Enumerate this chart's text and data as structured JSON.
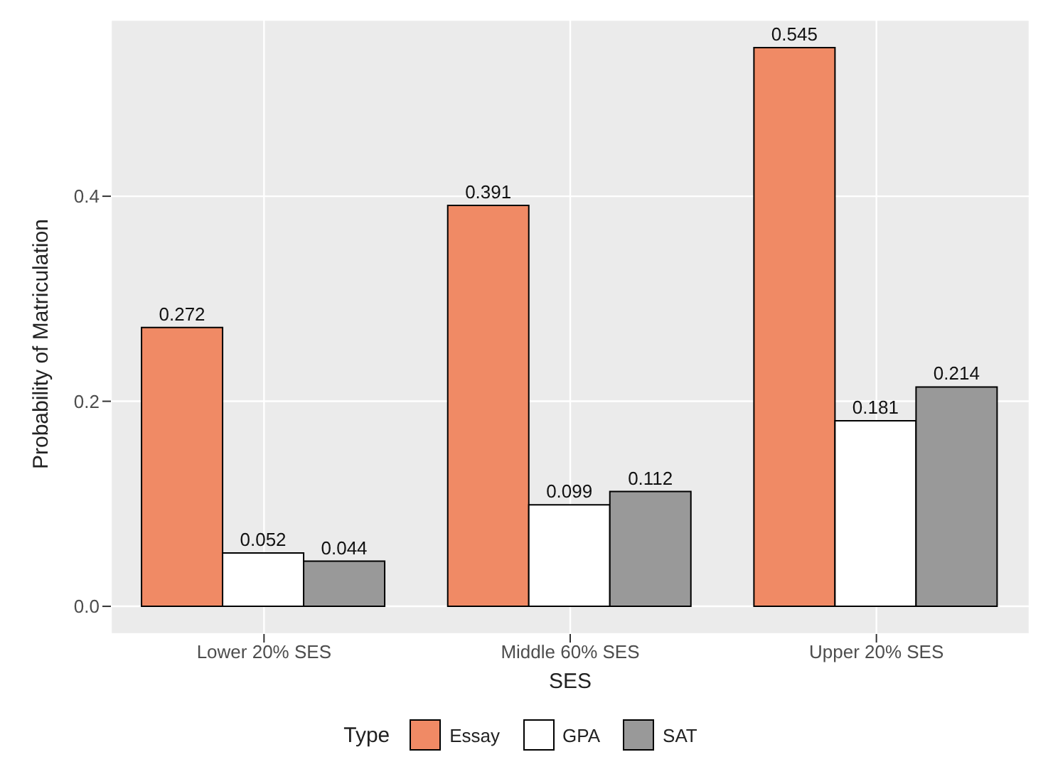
{
  "chart_data": {
    "type": "bar",
    "xlabel": "SES",
    "ylabel": "Probability of Matriculation",
    "legend_title": "Type",
    "categories": [
      "Lower 20% SES",
      "Middle 60% SES",
      "Upper 20% SES"
    ],
    "series": [
      {
        "name": "Essay",
        "color": "#f08a65",
        "values": [
          0.272,
          0.391,
          0.545
        ]
      },
      {
        "name": "GPA",
        "color": "#ffffff",
        "values": [
          0.052,
          0.099,
          0.181
        ]
      },
      {
        "name": "SAT",
        "color": "#999999",
        "values": [
          0.044,
          0.112,
          0.214
        ]
      }
    ],
    "ylim": [
      -0.027,
      0.572
    ],
    "yticks": [
      {
        "value": 0,
        "label": "0.0"
      },
      {
        "value": 0.2,
        "label": "0.2"
      },
      {
        "value": 0.4,
        "label": "0.4"
      }
    ],
    "grid": true,
    "legend": "bottom",
    "data_labels": true
  }
}
